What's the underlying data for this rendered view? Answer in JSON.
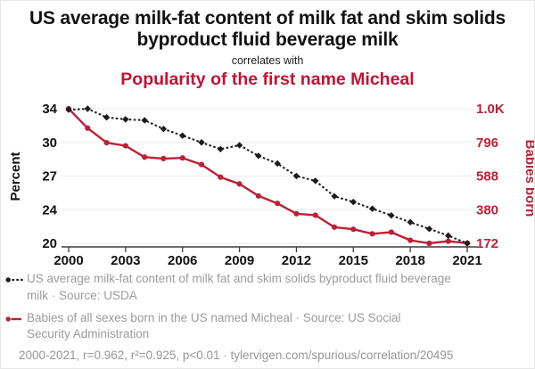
{
  "colors": {
    "title_red": "#c31235",
    "series_red": "#bb2134",
    "series_black": "#1b1b1b",
    "legend_text": "#9b9b9b",
    "footer_text": "#969696",
    "grid": "#ededed",
    "axis": "#3c3c3c",
    "tick_label": "#111111"
  },
  "header": {
    "title": "US average milk-fat content of milk fat and skim solids byproduct fluid beverage milk",
    "connector": "correlates with",
    "subtitle": "Popularity of the first name Micheal"
  },
  "chart_data": {
    "type": "line",
    "x": [
      2000,
      2001,
      2002,
      2003,
      2004,
      2005,
      2006,
      2007,
      2008,
      2009,
      2010,
      2011,
      2012,
      2013,
      2014,
      2015,
      2016,
      2017,
      2018,
      2019,
      2020,
      2021
    ],
    "x_tick_years": [
      2000,
      2003,
      2006,
      2009,
      2012,
      2015,
      2018,
      2021
    ],
    "x_tick_labels": [
      "2000",
      "2003",
      "2006",
      "2009",
      "2012",
      "2015",
      "2018",
      "2021"
    ],
    "left_axis": {
      "label": "Percent",
      "min": 20,
      "max": 34,
      "tick_labels": [
        "34",
        "30",
        "27",
        "24",
        "20"
      ]
    },
    "right_axis": {
      "label": "Babies born",
      "min": 172,
      "max": 1004,
      "tick_labels": [
        "1.0K",
        "796",
        "588",
        "380",
        "172"
      ]
    },
    "grid": true,
    "legend_position": "bottom",
    "series": [
      {
        "name": "US average milk-fat content of milk fat and skim solids byproduct fluid beverage milk",
        "axis": "left",
        "style": "dashed",
        "marker": "diamond",
        "values": [
          33.9,
          34.0,
          33.1,
          32.9,
          32.8,
          31.9,
          31.2,
          30.5,
          29.8,
          30.2,
          29.1,
          28.3,
          27.0,
          26.5,
          24.9,
          24.3,
          23.6,
          22.9,
          22.2,
          21.5,
          20.8,
          20.0
        ]
      },
      {
        "name": "Babies of all sexes born in the US named Micheal",
        "axis": "right",
        "style": "solid",
        "marker": "circle",
        "values": [
          1004,
          884,
          794,
          775,
          705,
          696,
          700,
          659,
          581,
          539,
          465,
          419,
          355,
          346,
          272,
          259,
          231,
          241,
          191,
          172,
          185,
          173
        ]
      }
    ]
  },
  "legend": {
    "items": [
      {
        "marker": "black-dashed-dot",
        "label": "US average milk-fat content of milk fat and skim solids byproduct fluid beverage\nmilk · Source: USDA"
      },
      {
        "marker": "red-solid-dot",
        "label": "Babies of all sexes born in the US named Micheal · Source: US Social\nSecurity Administration"
      }
    ]
  },
  "footer": {
    "text": "2000-2021, r=0.962, r²=0.925, p<0.01 · tylervigen.com/spurious/correlation/20495"
  }
}
